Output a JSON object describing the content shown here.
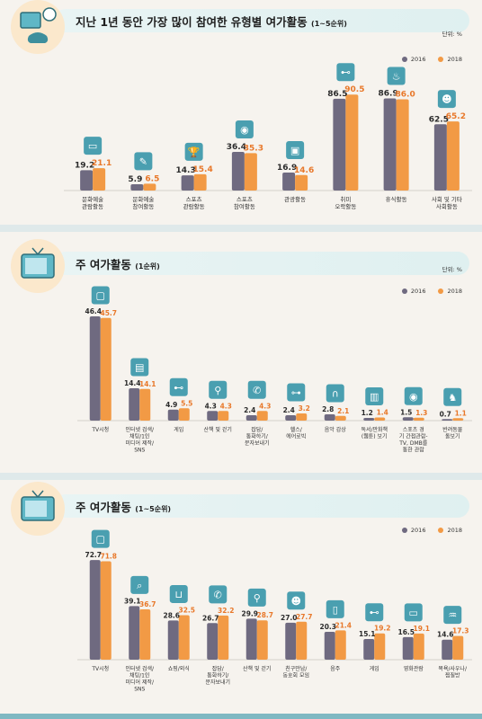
{
  "colors": {
    "series2016": "#6f6a80",
    "series2018": "#f29a45",
    "label2016": "#2b2b2b",
    "label2018": "#e8782a",
    "iconBox": "#4a9fb0"
  },
  "legend": {
    "s2016": "2016",
    "s2018": "2018"
  },
  "unit": "단위: %",
  "chart_data": [
    {
      "type": "bar",
      "title": "지난 1년 동안 가장 많이 참여한 유형별 여가활동",
      "subtitle": "(1~5순위)",
      "categories": [
        "문화예술\n관람활동",
        "문화예술\n참여활동",
        "스포츠\n관람활동",
        "스포츠\n참여활동",
        "관광활동",
        "취미\n오락활동",
        "휴식활동",
        "사회 및 기타\n사회활동"
      ],
      "icons": [
        "monitor-icon",
        "pen-icon",
        "trophy-icon",
        "ball-icon",
        "suitcase-icon",
        "gamepad-icon",
        "rest-icon",
        "people-icon"
      ],
      "series": [
        {
          "name": "2016",
          "values": [
            19.2,
            5.9,
            14.3,
            36.4,
            16.9,
            86.5,
            86.9,
            62.5
          ]
        },
        {
          "name": "2018",
          "values": [
            21.1,
            6.5,
            15.4,
            35.3,
            14.6,
            90.5,
            86.0,
            65.2
          ]
        }
      ],
      "ylim": [
        0,
        100
      ]
    },
    {
      "type": "bar",
      "title": "주 여가활동",
      "subtitle": "(1순위)",
      "categories": [
        "TV시청",
        "인터넷 검색/\n채팅/1인\n미디어 제작/\nSNS",
        "게임",
        "산책 및 걷기",
        "잡담/\n통화하기/\n문자보내기",
        "헬스/\n에어로빅",
        "음악 감상",
        "독서/만화책\n(웹툰) 보기",
        "스포츠 경\n기 간접관람-\nTV, DMB를\n통한 관람",
        "반려동물\n돌보기"
      ],
      "icons": [
        "tv-icon",
        "server-icon",
        "gamepad-icon",
        "walk-icon",
        "phone-icon",
        "dumbbell-icon",
        "headphones-icon",
        "book-icon",
        "ball-icon",
        "dog-icon"
      ],
      "series": [
        {
          "name": "2016",
          "values": [
            46.4,
            14.4,
            4.9,
            4.3,
            2.4,
            2.4,
            2.8,
            1.2,
            1.5,
            0.7
          ]
        },
        {
          "name": "2018",
          "values": [
            45.7,
            14.1,
            5.5,
            4.3,
            4.3,
            3.2,
            2.1,
            1.4,
            1.3,
            1.1
          ]
        }
      ],
      "ylim": [
        0,
        50
      ]
    },
    {
      "type": "bar",
      "title": "주 여가활동",
      "subtitle": "(1~5순위)",
      "categories": [
        "TV시청",
        "인터넷 검색/\n채팅/1인\n미디어 제작/\nSNS",
        "쇼핑/외식",
        "잡담/\n통화하기/\n문자보내기",
        "산책 및 걷기",
        "친구만남/\n동호회 모임",
        "음주",
        "게임",
        "영화관람",
        "목욕/사우나/\n찜질방"
      ],
      "icons": [
        "tv-icon",
        "search-icon",
        "bag-icon",
        "phone-icon",
        "walk-icon",
        "people-icon",
        "beer-icon",
        "gamepad-icon",
        "ticket-icon",
        "bath-icon"
      ],
      "series": [
        {
          "name": "2016",
          "values": [
            72.7,
            39.1,
            28.6,
            26.7,
            29.9,
            27.0,
            20.3,
            15.1,
            16.5,
            14.6
          ]
        },
        {
          "name": "2018",
          "values": [
            71.8,
            36.7,
            32.5,
            32.2,
            28.7,
            27.7,
            21.4,
            19.2,
            19.1,
            17.3
          ]
        }
      ],
      "ylim": [
        0,
        80
      ]
    }
  ]
}
